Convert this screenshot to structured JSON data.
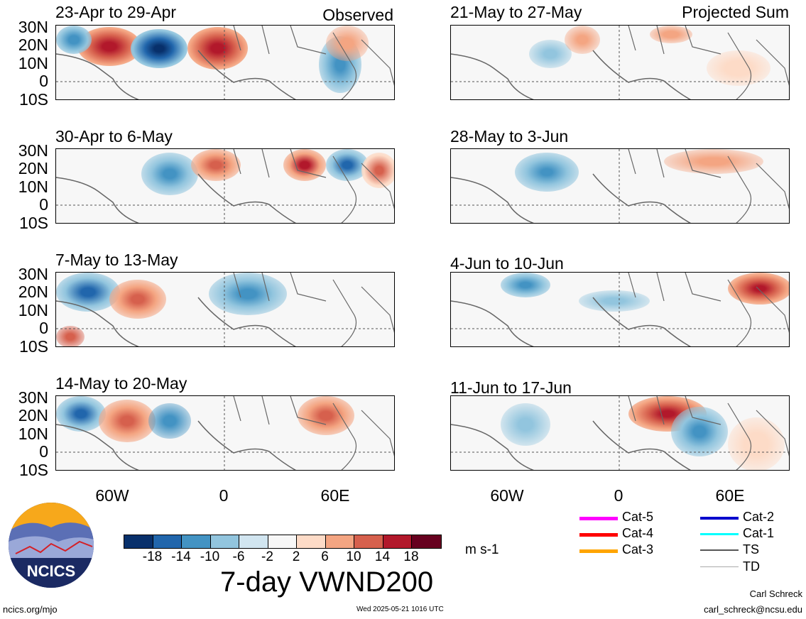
{
  "panels": [
    {
      "title": "23-Apr to 29-Apr",
      "tag": "Observed"
    },
    {
      "title": "21-May to 27-May",
      "tag": "Projected Sum"
    },
    {
      "title": "30-Apr to 6-May",
      "tag": ""
    },
    {
      "title": "28-May to 3-Jun",
      "tag": ""
    },
    {
      "title": "7-May to 13-May",
      "tag": ""
    },
    {
      "title": "4-Jun to 10-Jun",
      "tag": ""
    },
    {
      "title": "14-May to 20-May",
      "tag": ""
    },
    {
      "title": "11-Jun to 17-Jun",
      "tag": ""
    }
  ],
  "lat_labels": [
    "30N",
    "20N",
    "10N",
    "0",
    "10S"
  ],
  "lon_labels": [
    "60W",
    "0",
    "60E"
  ],
  "colorbar": {
    "colors": [
      "#08306b",
      "#2166ac",
      "#4393c3",
      "#92c5de",
      "#d1e5f0",
      "#f7f7f7",
      "#fddbc7",
      "#f4a582",
      "#d6604d",
      "#b2182b",
      "#67001f"
    ],
    "ticks": [
      "-18",
      "-14",
      "-10",
      "-6",
      "-2",
      "2",
      "6",
      "10",
      "14",
      "18"
    ],
    "units": "m s-1"
  },
  "main_title": "7-day VWND200",
  "legend": [
    {
      "label": "Cat-5",
      "color": "#ff00ff"
    },
    {
      "label": "Cat-4",
      "color": "#ff0000"
    },
    {
      "label": "Cat-3",
      "color": "#ffa500"
    },
    {
      "label": "Cat-2",
      "color": "#0000cd"
    },
    {
      "label": "Cat-1",
      "color": "#00ffff"
    },
    {
      "label": "TS",
      "color": "#555555"
    },
    {
      "label": "TD",
      "color": "#aaaaaa"
    }
  ],
  "logo_text": "NCICS",
  "footer": {
    "left": "ncics.org/mjo",
    "center": "Wed 2025-05-21 1016 UTC",
    "author": "Carl Schreck",
    "email": "carl_schreck@ncsu.edu"
  }
}
